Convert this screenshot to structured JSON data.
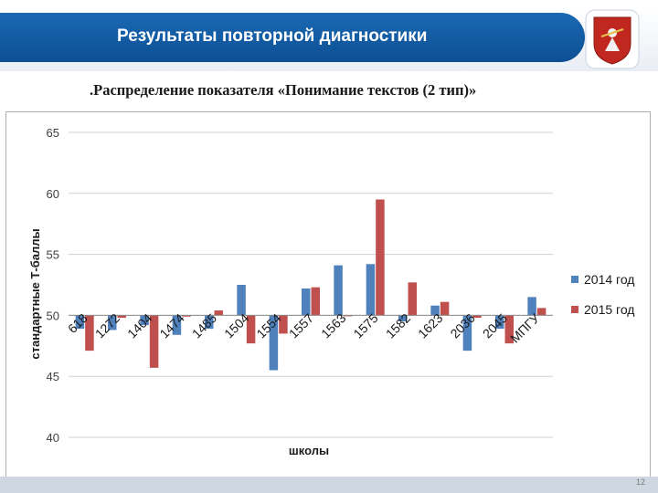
{
  "header": {
    "title": "Результаты повторной диагностики",
    "emblem_icon": "moscow-coat-of-arms-icon"
  },
  "subtitle": ".Распределение показателя  «Понимание  текстов (2 тип)»",
  "page_number": "12",
  "colors": {
    "title_bar": "#1566ad",
    "series_2014": "#4f81bd",
    "series_2015": "#c0504d"
  },
  "chart_data": {
    "type": "bar",
    "title": "",
    "xlabel": "школы",
    "ylabel": "стандартные Т-баллы",
    "ylim": [
      40,
      65
    ],
    "yticks": [
      40,
      45,
      50,
      55,
      60,
      65
    ],
    "baseline": 50,
    "grid": true,
    "legend_position": "right",
    "categories": [
      "618",
      "1272",
      "1404",
      "1474",
      "1485",
      "1504",
      "1554",
      "1557",
      "1563",
      "1575",
      "1582",
      "1623",
      "2036",
      "2045",
      "МПГУ"
    ],
    "series": [
      {
        "name": "2014 год",
        "values": [
          48.9,
          48.8,
          49.2,
          48.4,
          48.9,
          52.5,
          45.5,
          52.2,
          54.1,
          54.2,
          49.5,
          50.8,
          47.1,
          48.9,
          51.5
        ]
      },
      {
        "name": "2015 год",
        "values": [
          47.1,
          49.8,
          45.7,
          49.9,
          50.4,
          47.7,
          48.5,
          52.3,
          50.0,
          59.5,
          52.7,
          51.1,
          49.8,
          47.7,
          50.6
        ]
      }
    ]
  }
}
